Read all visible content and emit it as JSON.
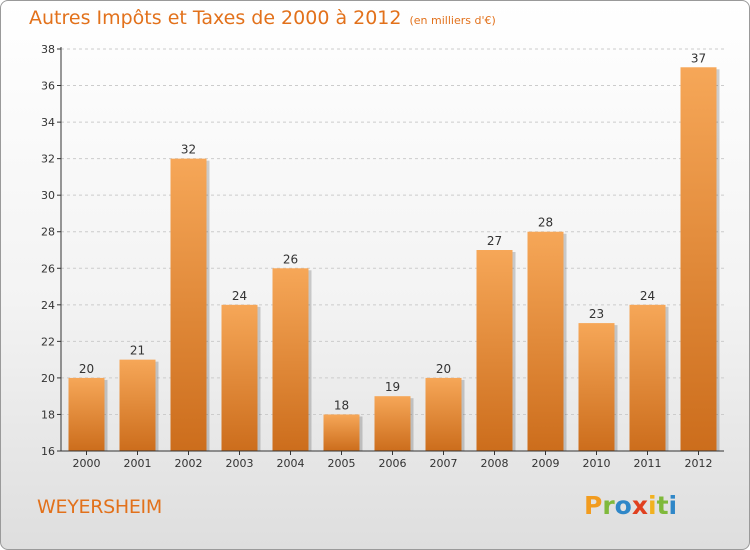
{
  "header": {
    "title": "Autres Impôts et Taxes de 2000 à 2012",
    "subtitle": "(en milliers d'€)"
  },
  "footer": {
    "town": "WEYERSHEIM",
    "logo_letters": [
      "P",
      "r",
      "o",
      "x",
      "i",
      "t",
      "i"
    ],
    "logo_colors": [
      "#f29c1f",
      "#7fb93b",
      "#2f87c8",
      "#e0401f",
      "#f2b11f",
      "#7fb93b",
      "#2f87c8"
    ]
  },
  "colors": {
    "accent": "#e2711b",
    "bar_top": "#f6a758",
    "bar_bottom": "#cc6d1c",
    "axis": "#333333",
    "grid": "#cccccc"
  },
  "chart_data": {
    "type": "bar",
    "categories": [
      "2000",
      "2001",
      "2002",
      "2003",
      "2004",
      "2005",
      "2006",
      "2007",
      "2008",
      "2009",
      "2010",
      "2011",
      "2012"
    ],
    "values": [
      20,
      21,
      32,
      24,
      26,
      18,
      19,
      20,
      27,
      28,
      23,
      24,
      37
    ],
    "value_labels": [
      "20",
      "21",
      "32",
      "24",
      "26",
      "18",
      "19",
      "20",
      "27",
      "28",
      "23",
      "24",
      "37"
    ],
    "ylim": [
      16,
      38
    ],
    "yticks": [
      16,
      18,
      20,
      22,
      24,
      26,
      28,
      30,
      32,
      34,
      36,
      38
    ],
    "grid": "horizontal dashed",
    "xlabel": "",
    "ylabel": ""
  }
}
